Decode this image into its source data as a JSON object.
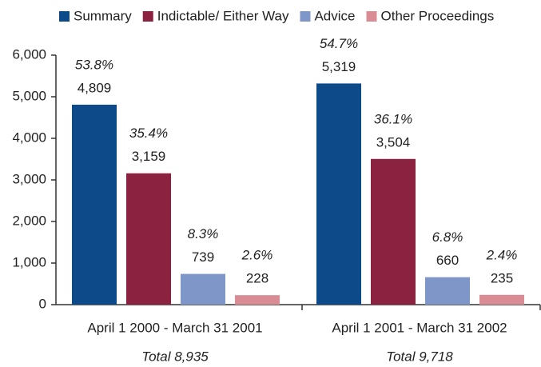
{
  "chart_data": {
    "type": "bar",
    "categories": [
      "April 1 2000 - March 31 2001",
      "April 1 2001 - March 31 2002"
    ],
    "category_notes": [
      "Total 8,935",
      "Total 9,718"
    ],
    "series": [
      {
        "name": "Summary",
        "color": "#0d4a8a",
        "values": [
          4809,
          5319
        ],
        "value_labels": [
          "4,809",
          "5,319"
        ],
        "share_labels": [
          "53.8%",
          "54.7%"
        ]
      },
      {
        "name": "Indictable/ Either Way",
        "color": "#8b2240",
        "values": [
          3159,
          3504
        ],
        "value_labels": [
          "3,159",
          "3,504"
        ],
        "share_labels": [
          "35.4%",
          "36.1%"
        ]
      },
      {
        "name": "Advice",
        "color": "#7f97c8",
        "values": [
          739,
          660
        ],
        "value_labels": [
          "739",
          "660"
        ],
        "share_labels": [
          "8.3%",
          "6.8%"
        ]
      },
      {
        "name": "Other Proceedings",
        "color": "#d98c94",
        "values": [
          228,
          235
        ],
        "value_labels": [
          "228",
          "235"
        ],
        "share_labels": [
          "2.6%",
          "2.4%"
        ]
      }
    ],
    "ylim": [
      0,
      6000
    ],
    "yticks": [
      0,
      {
        "value": 1000,
        "label": "1,000"
      },
      {
        "value": 2000,
        "label": "2,000"
      },
      {
        "value": 3000,
        "label": "3,000"
      },
      {
        "value": 4000,
        "label": "4,000"
      },
      {
        "value": 5000,
        "label": "5,000"
      },
      {
        "value": 6000,
        "label": "6,000"
      }
    ],
    "legend": "top"
  }
}
